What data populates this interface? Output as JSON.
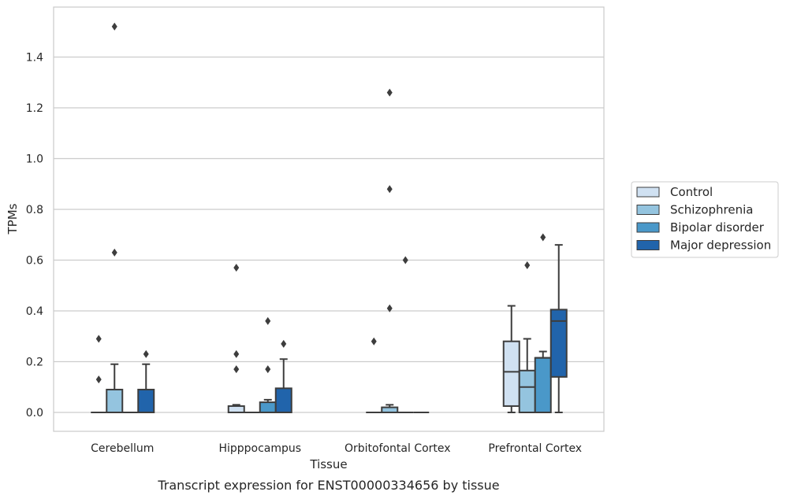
{
  "caption": "Transcript expression for ENST00000334656 by tissue",
  "chart_data": {
    "type": "box",
    "xlabel": "Tissue",
    "ylabel": "TPMs",
    "ylim": [
      -0.075,
      1.6
    ],
    "yticks": [
      0.0,
      0.2,
      0.4,
      0.6,
      0.8,
      1.0,
      1.2,
      1.4
    ],
    "ytick_labels": [
      "0.0",
      "0.2",
      "0.4",
      "0.6",
      "0.8",
      "1.0",
      "1.2",
      "1.4"
    ],
    "grid": "horizontal",
    "legend_position": "right",
    "categories": [
      "Cerebellum",
      "Hipppocampus",
      "Orbitofontal Cortex",
      "Prefrontal Cortex"
    ],
    "series": [
      {
        "name": "Control",
        "color": "#d0e1f2",
        "boxes": [
          {
            "q1": 0,
            "median": 0,
            "q3": 0,
            "whisker_low": 0,
            "whisker_high": 0,
            "outliers": [
              0.29,
              0.13
            ]
          },
          {
            "q1": 0,
            "median": 0,
            "q3": 0.025,
            "whisker_low": 0,
            "whisker_high": 0.03,
            "outliers": [
              0.57,
              0.23,
              0.17
            ]
          },
          {
            "q1": 0,
            "median": 0,
            "q3": 0,
            "whisker_low": 0,
            "whisker_high": 0,
            "outliers": [
              0.28
            ]
          },
          {
            "q1": 0.025,
            "median": 0.16,
            "q3": 0.28,
            "whisker_low": 0,
            "whisker_high": 0.42,
            "outliers": []
          }
        ]
      },
      {
        "name": "Schizophrenia",
        "color": "#94c4df",
        "boxes": [
          {
            "q1": 0,
            "median": 0,
            "q3": 0.09,
            "whisker_low": 0,
            "whisker_high": 0.19,
            "outliers": [
              1.52,
              0.63
            ]
          },
          {
            "q1": 0,
            "median": 0,
            "q3": 0,
            "whisker_low": 0,
            "whisker_high": 0,
            "outliers": []
          },
          {
            "q1": 0,
            "median": 0,
            "q3": 0.02,
            "whisker_low": 0,
            "whisker_high": 0.03,
            "outliers": [
              1.26,
              0.88,
              0.41
            ]
          },
          {
            "q1": 0,
            "median": 0.1,
            "q3": 0.165,
            "whisker_low": 0,
            "whisker_high": 0.29,
            "outliers": [
              0.58
            ]
          }
        ]
      },
      {
        "name": "Bipolar disorder",
        "color": "#4a98c9",
        "boxes": [
          {
            "q1": 0,
            "median": 0,
            "q3": 0,
            "whisker_low": 0,
            "whisker_high": 0,
            "outliers": []
          },
          {
            "q1": 0,
            "median": 0,
            "q3": 0.04,
            "whisker_low": 0,
            "whisker_high": 0.05,
            "outliers": [
              0.36,
              0.17
            ]
          },
          {
            "q1": 0,
            "median": 0,
            "q3": 0,
            "whisker_low": 0,
            "whisker_high": 0,
            "outliers": [
              0.6
            ]
          },
          {
            "q1": 0,
            "median": 0.215,
            "q3": 0.215,
            "whisker_low": 0,
            "whisker_high": 0.24,
            "outliers": [
              0.69
            ]
          }
        ]
      },
      {
        "name": "Major depression",
        "color": "#2164ab",
        "boxes": [
          {
            "q1": 0,
            "median": 0,
            "q3": 0.09,
            "whisker_low": 0,
            "whisker_high": 0.19,
            "outliers": [
              0.23
            ]
          },
          {
            "q1": 0,
            "median": 0,
            "q3": 0.095,
            "whisker_low": 0,
            "whisker_high": 0.21,
            "outliers": [
              0.27
            ]
          },
          {
            "q1": 0,
            "median": 0,
            "q3": 0,
            "whisker_low": 0,
            "whisker_high": 0,
            "outliers": []
          },
          {
            "q1": 0.14,
            "median": 0.36,
            "q3": 0.405,
            "whisker_low": 0,
            "whisker_high": 0.66,
            "outliers": []
          }
        ]
      }
    ]
  }
}
